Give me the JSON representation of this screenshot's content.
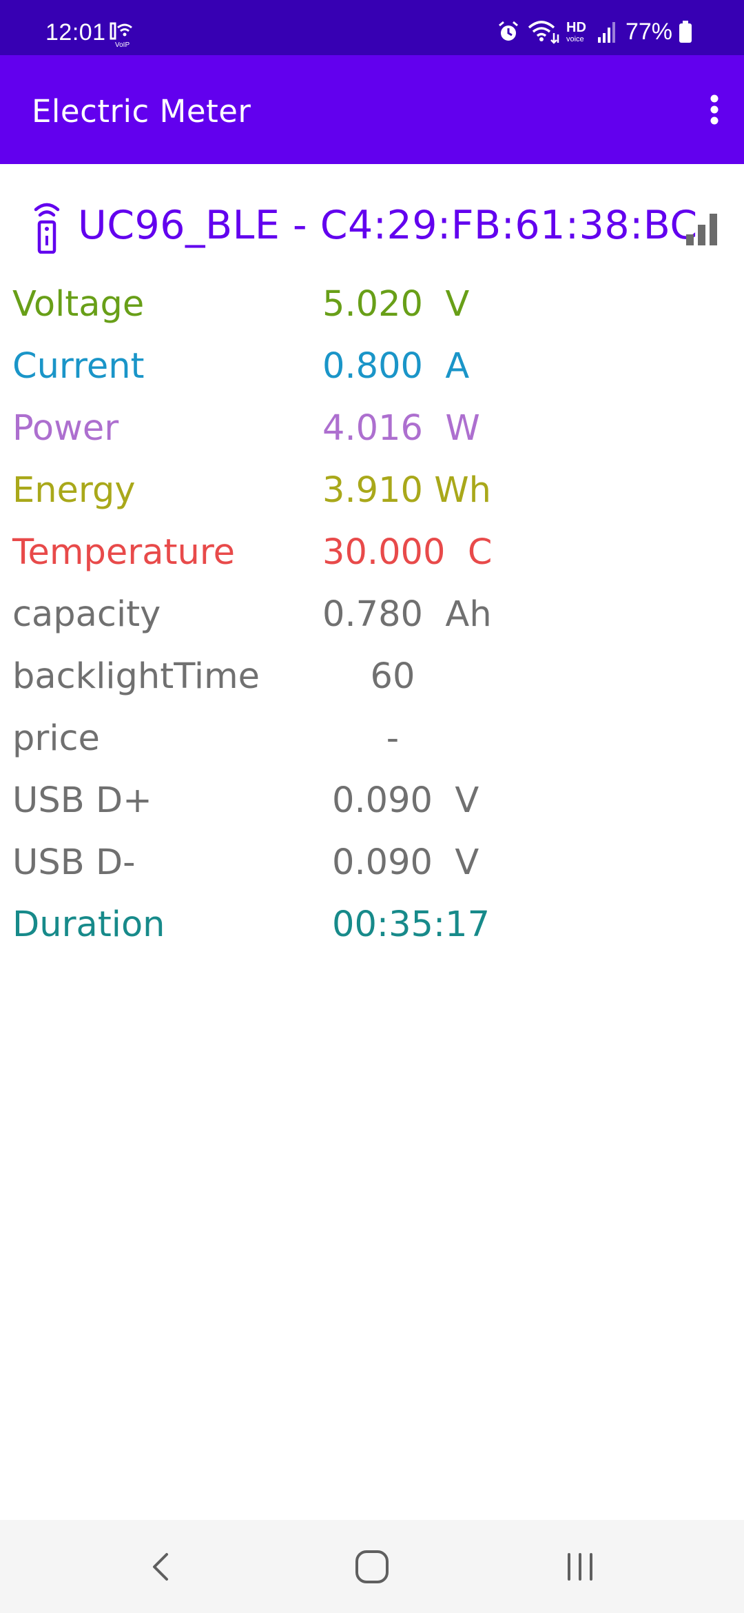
{
  "status": {
    "time": "12:01",
    "battery": "77%"
  },
  "app": {
    "title": "Electric Meter"
  },
  "device": {
    "name": "UC96_BLE - C4:29:FB:61:38:BC"
  },
  "readings": [
    {
      "label": "Voltage",
      "value": "5.020  V",
      "color": "#689f18"
    },
    {
      "label": "Current",
      "value": "0.800  A",
      "color": "#1a95c8"
    },
    {
      "label": "Power",
      "value": "4.016  W",
      "color": "#ad6fcf"
    },
    {
      "label": "Energy",
      "value": "3.910 Wh",
      "color": "#a9a81a"
    },
    {
      "label": "Temperature",
      "value": "30.000  C",
      "color": "#e84a4a"
    },
    {
      "label": "capacity",
      "value": "0.780  Ah",
      "color": "#707070"
    },
    {
      "label": "backlightTime",
      "value": "60",
      "color": "#707070"
    },
    {
      "label": "price",
      "value": "-",
      "color": "#707070"
    },
    {
      "label": "USB D+",
      "value": "0.090  V",
      "color": "#707070"
    },
    {
      "label": "USB D-",
      "value": "0.090  V",
      "color": "#707070"
    },
    {
      "label": "Duration",
      "value": "00:35:17",
      "color": "#178a8a"
    }
  ],
  "icons": {
    "status": [
      "voip-wifi-icon",
      "alarm-icon",
      "wifi-icon",
      "hd-voice-icon",
      "cellular-signal-icon",
      "battery-icon"
    ],
    "menu": "more-vert-icon",
    "device": "remote-icon",
    "signal": "signal-bars-icon",
    "nav": [
      "back-icon",
      "home-icon",
      "recents-icon"
    ]
  },
  "colors": {
    "status_bar": "#3700b3",
    "app_bar": "#6200ee",
    "accent": "#6200ee"
  }
}
